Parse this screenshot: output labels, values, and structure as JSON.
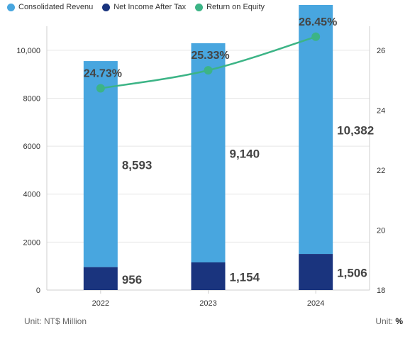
{
  "legend": [
    {
      "label": "Consolidated Revenu",
      "color": "#48a6df"
    },
    {
      "label": "Net Income After Tax",
      "color": "#1a347e"
    },
    {
      "label": "Return on Equity",
      "color": "#3cb486"
    }
  ],
  "units": {
    "left_label": "Unit: NT$ Million",
    "right_prefix": "Unit: ",
    "right_unit": "%"
  },
  "chart_data": {
    "type": "bar",
    "categories": [
      "2022",
      "2023",
      "2024"
    ],
    "series": [
      {
        "name": "Consolidated Revenu",
        "type": "bar",
        "axis": "left",
        "stacked": true,
        "color": "#48a6df",
        "values": [
          8593,
          9140,
          10382
        ],
        "labels": [
          "8,593",
          "9,140",
          "10,382"
        ]
      },
      {
        "name": "Net Income After Tax",
        "type": "bar",
        "axis": "left",
        "stacked": true,
        "color": "#1a347e",
        "values": [
          956,
          1154,
          1506
        ],
        "labels": [
          "956",
          "1,154",
          "1,506"
        ]
      },
      {
        "name": "Return on Equity",
        "type": "line",
        "axis": "right",
        "color": "#3cb486",
        "values": [
          24.73,
          25.33,
          26.45
        ],
        "labels": [
          "24.73%",
          "25.33%",
          "26.45%"
        ]
      }
    ],
    "y_left": {
      "ticks": [
        "0",
        "2000",
        "4000",
        "6000",
        "8000",
        "10,000"
      ],
      "values": [
        0,
        2000,
        4000,
        6000,
        8000,
        10000
      ],
      "lim": [
        0,
        11000
      ]
    },
    "y_right": {
      "ticks": [
        "18",
        "20",
        "22",
        "24",
        "26"
      ],
      "values": [
        18,
        20,
        22,
        24,
        26
      ],
      "lim": [
        18,
        26.8
      ]
    },
    "grid": true,
    "legend_position": "top-left"
  }
}
